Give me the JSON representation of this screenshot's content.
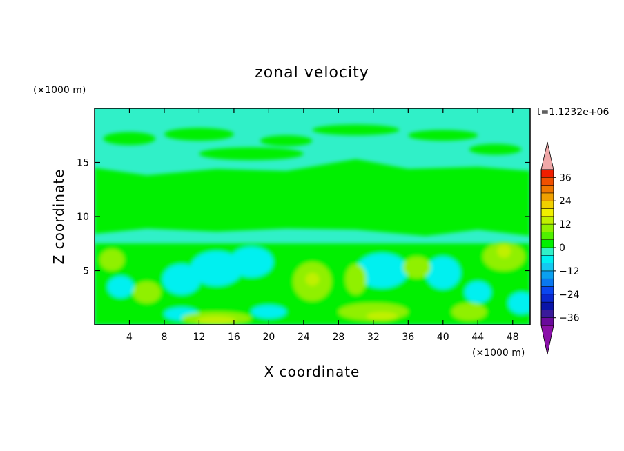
{
  "chart_data": {
    "type": "heatmap",
    "title": "zonal velocity",
    "xlabel": "X coordinate",
    "ylabel": "Z coordinate",
    "x_unit": "(×1000 m)",
    "y_unit": "(×1000 m)",
    "time_label": "t=1.1232e+06",
    "xlim": [
      0,
      50
    ],
    "ylim": [
      0,
      20
    ],
    "x_ticks": [
      "4",
      "8",
      "12",
      "16",
      "20",
      "24",
      "28",
      "32",
      "36",
      "40",
      "44",
      "48"
    ],
    "y_ticks": [
      "5",
      "10",
      "15"
    ],
    "colorbar": {
      "tick_labels": [
        "36",
        "24",
        "12",
        "0",
        "−12",
        "−24",
        "−36"
      ],
      "tick_values": [
        36,
        24,
        12,
        0,
        -12,
        -24,
        -36
      ],
      "levels": [
        -40,
        -36,
        -32,
        -28,
        -24,
        -20,
        -16,
        -12,
        -8,
        -4,
        0,
        4,
        8,
        12,
        16,
        20,
        24,
        28,
        32,
        36,
        40
      ],
      "colors": [
        "#6a0a9c",
        "#3a1a9a",
        "#0a14a8",
        "#0a28d0",
        "#0a46f0",
        "#0a78f0",
        "#0aa0f0",
        "#14c8f0",
        "#00f0f0",
        "#30f0c8",
        "#00f000",
        "#50f000",
        "#90f000",
        "#c0f000",
        "#f0f000",
        "#f0d000",
        "#f0a000",
        "#f07800",
        "#f05000",
        "#f01e00"
      ],
      "under_color": "#8a10a8",
      "over_color": "#f0a8a8"
    },
    "colors": {
      "background": "#ffffff",
      "field_base": "#30f0c8",
      "field_mid": "#00f000",
      "field_pos": "#90f000",
      "field_strong": "#c0f000",
      "field_neg": "#00f0f0"
    }
  }
}
